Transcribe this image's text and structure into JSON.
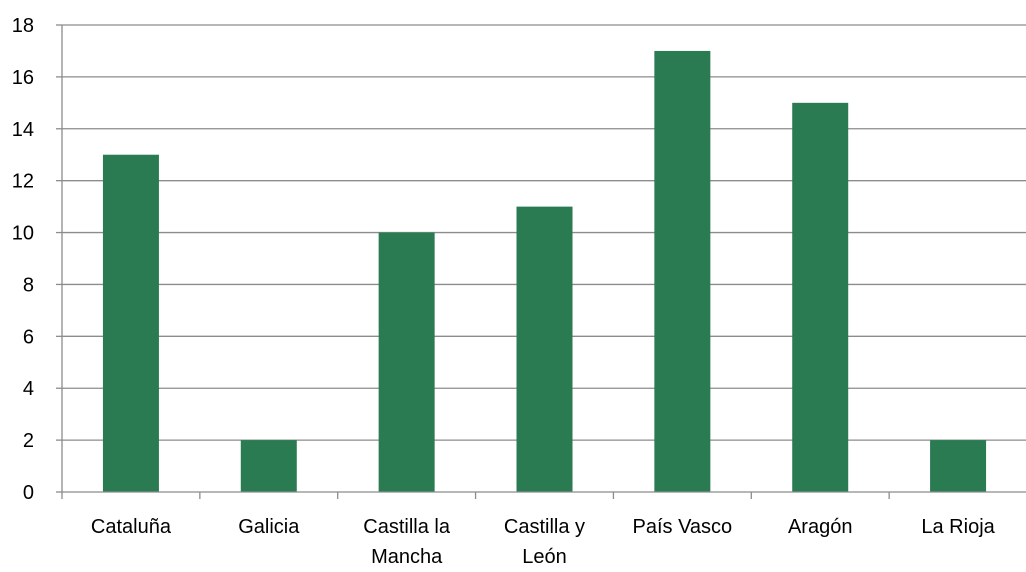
{
  "chart_data": {
    "type": "bar",
    "categories": [
      [
        "Cataluña"
      ],
      [
        "Galicia"
      ],
      [
        "Castilla la",
        "Mancha"
      ],
      [
        "Castilla y",
        "León"
      ],
      [
        "País Vasco"
      ],
      [
        "Aragón"
      ],
      [
        "La Rioja"
      ]
    ],
    "values": [
      13,
      2,
      10,
      11,
      17,
      15,
      2
    ],
    "ylim": [
      0,
      18
    ],
    "ytick_step": 2,
    "grid": true,
    "legend": "none",
    "bar_color": "#2a7b52",
    "grid_color": "#8c8c8c"
  }
}
